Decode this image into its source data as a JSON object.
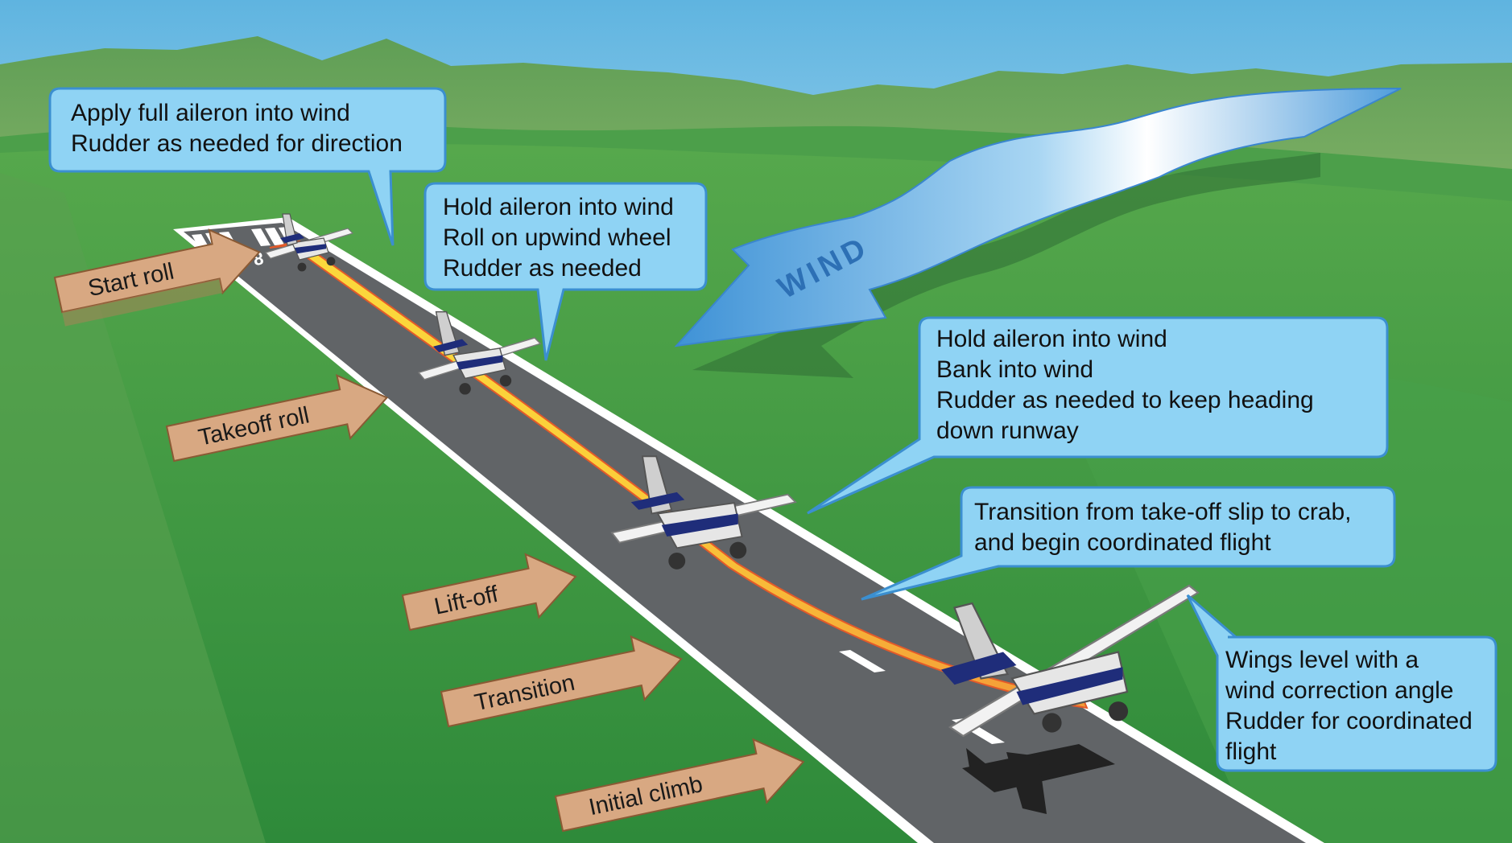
{
  "callouts": [
    {
      "id": "start-roll",
      "lines": [
        "Apply full aileron into wind",
        "Rudder as needed for direction"
      ]
    },
    {
      "id": "takeoff-roll",
      "lines": [
        "Hold aileron into wind",
        "Roll on upwind wheel",
        "Rudder as needed"
      ]
    },
    {
      "id": "lift-off",
      "lines": [
        "Hold aileron into wind",
        "Bank into wind",
        "Rudder as needed to keep heading",
        "down runway"
      ]
    },
    {
      "id": "transition",
      "lines": [
        "Transition from take-off slip to crab,",
        "and begin coordinated flight"
      ]
    },
    {
      "id": "initial-climb",
      "lines": [
        "Wings level with a",
        "wind correction angle",
        "Rudder for coordinated",
        "flight"
      ]
    }
  ],
  "stages": [
    "Start roll",
    "Takeoff roll",
    "Lift-off",
    "Transition",
    "Initial climb"
  ],
  "wind": {
    "label": "WIND"
  },
  "colors": {
    "sky_top": "#5fb4e0",
    "sky_bottom": "#ffffff",
    "mountain": "#5a9a52",
    "grass": "#3f9a44",
    "runway": "#606366",
    "callout_fill": "#8fd3f4",
    "callout_stroke": "#3b8fd0",
    "stage_fill": "#d8a882",
    "path_yellow": "#fbd23a",
    "path_orange": "#f6a33a",
    "wind_ribbon": "#5fa8df"
  }
}
